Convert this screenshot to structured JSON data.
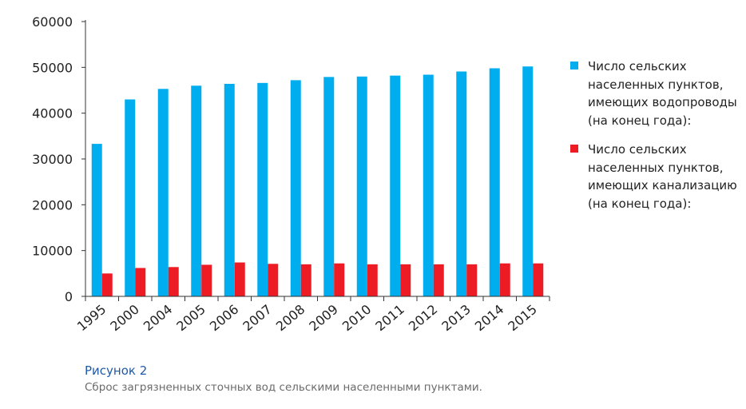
{
  "chart_data": {
    "type": "bar",
    "categories": [
      "1995",
      "2000",
      "2004",
      "2005",
      "2006",
      "2007",
      "2008",
      "2009",
      "2010",
      "2011",
      "2012",
      "2013",
      "2014",
      "2015"
    ],
    "series": [
      {
        "name": "Число сельских населенных пунктов, имеющих водопроводы (на конец года):",
        "color": "#00aeef",
        "values": [
          33300,
          43000,
          45300,
          46000,
          46400,
          46600,
          47200,
          47900,
          48000,
          48200,
          48400,
          49100,
          49800,
          50200
        ]
      },
      {
        "name": "Число сельских населенных пунктов, имеющих канализацию (на конец года):",
        "color": "#ed1c24",
        "values": [
          5000,
          6200,
          6400,
          6900,
          7400,
          7100,
          7000,
          7200,
          7000,
          7000,
          7000,
          7000,
          7200,
          7200
        ]
      }
    ],
    "ylim": [
      0,
      60000
    ],
    "yticks": [
      0,
      10000,
      20000,
      30000,
      40000,
      50000,
      60000
    ],
    "grid": false,
    "legend_position": "right"
  },
  "caption": {
    "title": "Рисунок 2",
    "text": "Сброс загрязненных сточных вод сельскими населенными пунктами."
  }
}
